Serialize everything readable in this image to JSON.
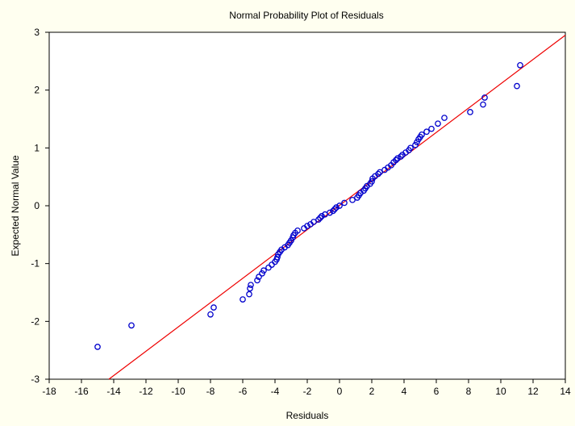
{
  "chart_data": {
    "type": "scatter",
    "title": "Normal Probability Plot of Residuals",
    "xlabel": "Residuals",
    "ylabel": "Expected Normal Value",
    "xlim": [
      -18,
      14
    ],
    "ylim": [
      -3,
      3
    ],
    "xticks": [
      "-18",
      "-16",
      "-14",
      "-12",
      "-10",
      "-8",
      "-6",
      "-4",
      "-2",
      "0",
      "2",
      "4",
      "6",
      "8",
      "10",
      "12",
      "14"
    ],
    "yticks": [
      "3",
      "2",
      "1",
      "0",
      "-1",
      "-2",
      "-3"
    ],
    "grid": false,
    "background_color": "#fffff0",
    "series": [
      {
        "marker": "open-circle",
        "color": "#0000cc",
        "points": [
          [
            -15.0,
            -2.44
          ],
          [
            -12.9,
            -2.07
          ],
          [
            -8.0,
            -1.88
          ],
          [
            -7.8,
            -1.76
          ],
          [
            -6.0,
            -1.62
          ],
          [
            -5.6,
            -1.53
          ],
          [
            -5.55,
            -1.43
          ],
          [
            -5.5,
            -1.37
          ],
          [
            -5.1,
            -1.29
          ],
          [
            -5.0,
            -1.23
          ],
          [
            -4.8,
            -1.17
          ],
          [
            -4.7,
            -1.12
          ],
          [
            -4.4,
            -1.07
          ],
          [
            -4.2,
            -1.02
          ],
          [
            -4.0,
            -0.97
          ],
          [
            -3.9,
            -0.93
          ],
          [
            -3.85,
            -0.89
          ],
          [
            -3.8,
            -0.84
          ],
          [
            -3.7,
            -0.8
          ],
          [
            -3.6,
            -0.76
          ],
          [
            -3.4,
            -0.72
          ],
          [
            -3.2,
            -0.68
          ],
          [
            -3.1,
            -0.64
          ],
          [
            -3.0,
            -0.6
          ],
          [
            -2.9,
            -0.55
          ],
          [
            -2.85,
            -0.51
          ],
          [
            -2.75,
            -0.47
          ],
          [
            -2.6,
            -0.43
          ],
          [
            -2.2,
            -0.39
          ],
          [
            -2.0,
            -0.35
          ],
          [
            -1.8,
            -0.32
          ],
          [
            -1.6,
            -0.28
          ],
          [
            -1.3,
            -0.24
          ],
          [
            -1.2,
            -0.21
          ],
          [
            -1.1,
            -0.18
          ],
          [
            -0.9,
            -0.15
          ],
          [
            -0.6,
            -0.12
          ],
          [
            -0.4,
            -0.09
          ],
          [
            -0.3,
            -0.06
          ],
          [
            -0.2,
            -0.03
          ],
          [
            0.0,
            0.0
          ],
          [
            0.3,
            0.05
          ],
          [
            0.8,
            0.1
          ],
          [
            1.1,
            0.14
          ],
          [
            1.2,
            0.18
          ],
          [
            1.3,
            0.22
          ],
          [
            1.5,
            0.26
          ],
          [
            1.6,
            0.3
          ],
          [
            1.7,
            0.34
          ],
          [
            1.9,
            0.38
          ],
          [
            2.0,
            0.42
          ],
          [
            2.05,
            0.47
          ],
          [
            2.2,
            0.51
          ],
          [
            2.4,
            0.55
          ],
          [
            2.5,
            0.58
          ],
          [
            2.8,
            0.62
          ],
          [
            3.0,
            0.66
          ],
          [
            3.2,
            0.7
          ],
          [
            3.35,
            0.75
          ],
          [
            3.5,
            0.79
          ],
          [
            3.6,
            0.82
          ],
          [
            3.8,
            0.85
          ],
          [
            3.9,
            0.88
          ],
          [
            4.1,
            0.92
          ],
          [
            4.3,
            0.96
          ],
          [
            4.4,
            1.0
          ],
          [
            4.7,
            1.05
          ],
          [
            4.8,
            1.1
          ],
          [
            4.9,
            1.15
          ],
          [
            5.0,
            1.19
          ],
          [
            5.1,
            1.23
          ],
          [
            5.4,
            1.28
          ],
          [
            5.7,
            1.33
          ],
          [
            6.1,
            1.42
          ],
          [
            6.5,
            1.52
          ],
          [
            8.1,
            1.62
          ],
          [
            8.9,
            1.75
          ],
          [
            9.0,
            1.87
          ],
          [
            11.0,
            2.07
          ],
          [
            11.2,
            2.43
          ]
        ]
      }
    ],
    "reference_line": {
      "color": "#ee0000",
      "from": [
        -14.3,
        -3
      ],
      "to": [
        14,
        2.95
      ]
    }
  }
}
